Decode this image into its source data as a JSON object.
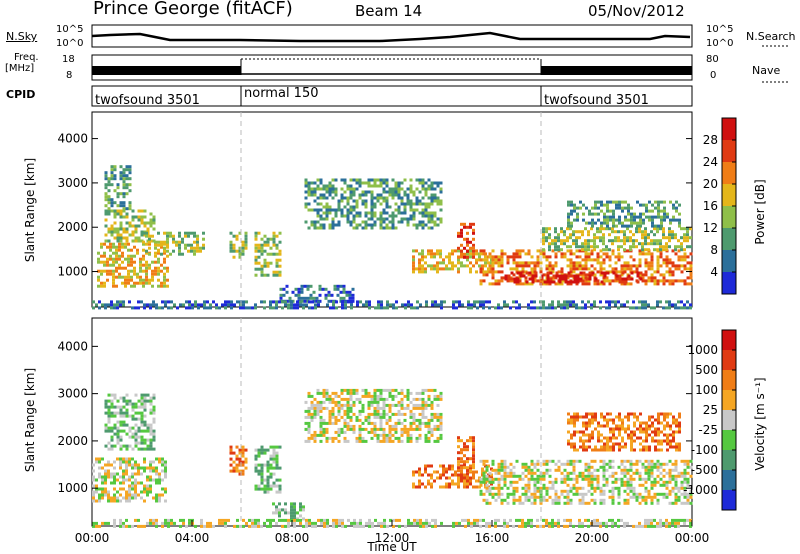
{
  "header": {
    "station": "Prince George (fitACF)",
    "beam": "Beam 14",
    "date": "05/Nov/2012"
  },
  "strips": {
    "nsky_label": "N.Sky",
    "nsky_top": "10^5",
    "nsky_bottom": "10^0",
    "nsearch_label": "N.Search",
    "nsearch_top": "10^5",
    "nsearch_bottom": "10^0",
    "freq_label_1": "Freq.",
    "freq_label_2": "[MHz]",
    "freq_top": "18",
    "freq_bottom": "8",
    "nave_label": "Nave",
    "nave_top": "80",
    "nave_bottom": "0",
    "cpid_label": "CPID",
    "cpid_segments": [
      {
        "label": "twofsound 3501",
        "start_hour": 0
      },
      {
        "label": "normal 150",
        "start_hour": 6
      },
      {
        "label": "twofsound 3501",
        "start_hour": 18
      }
    ]
  },
  "chart_data": [
    {
      "type": "heatmap",
      "panel": "power",
      "ylabel": "Slant Range [km]",
      "yticks": [
        "1000",
        "2000",
        "3000",
        "4000"
      ],
      "ylim": [
        200,
        4600
      ],
      "xlim": [
        0,
        24
      ],
      "colorbar": {
        "label": "Power [dB]",
        "ticks": [
          "4",
          "8",
          "12",
          "16",
          "20",
          "24",
          "28"
        ],
        "colors": [
          "#1e2ad8",
          "#2b6f9a",
          "#4e9a6e",
          "#8fbf49",
          "#e4b61a",
          "#f07d16",
          "#e03a12",
          "#d01010"
        ]
      },
      "regions": [
        {
          "t0": 0.2,
          "t1": 3.0,
          "r0": 700,
          "r1": 1650,
          "level": 4
        },
        {
          "t0": 0.5,
          "t1": 2.5,
          "r0": 1700,
          "r1": 2400,
          "level": 3
        },
        {
          "t0": 0.5,
          "t1": 1.5,
          "r0": 2400,
          "r1": 3400,
          "level": 2
        },
        {
          "t0": 2.0,
          "t1": 4.5,
          "r0": 1400,
          "r1": 1900,
          "level": 3
        },
        {
          "t0": 5.5,
          "t1": 6.2,
          "r0": 1300,
          "r1": 1900,
          "level": 3
        },
        {
          "t0": 6.5,
          "t1": 7.5,
          "r0": 900,
          "r1": 1900,
          "level": 3
        },
        {
          "t0": 7.5,
          "t1": 10.5,
          "r0": 350,
          "r1": 700,
          "level": 1
        },
        {
          "t0": 8.5,
          "t1": 14.0,
          "r0": 2000,
          "r1": 3100,
          "level": 2
        },
        {
          "t0": 12.8,
          "t1": 16.0,
          "r0": 1000,
          "r1": 1500,
          "level": 4
        },
        {
          "t0": 14.6,
          "t1": 15.3,
          "r0": 1300,
          "r1": 2100,
          "level": 6
        },
        {
          "t0": 15.5,
          "t1": 24.0,
          "r0": 700,
          "r1": 1500,
          "level": 5
        },
        {
          "t0": 16.5,
          "t1": 22.0,
          "r0": 750,
          "r1": 1000,
          "level": 7
        },
        {
          "t0": 18.0,
          "t1": 24.0,
          "r0": 1500,
          "r1": 2000,
          "level": 3
        },
        {
          "t0": 19.0,
          "t1": 23.5,
          "r0": 2000,
          "r1": 2600,
          "level": 2
        },
        {
          "t0": 0.0,
          "t1": 24.0,
          "r0": 200,
          "r1": 350,
          "level": 1
        }
      ]
    },
    {
      "type": "heatmap",
      "panel": "velocity",
      "xlabel": "Time UT",
      "ylabel": "Slant Range [km]",
      "xticks": [
        "00:00",
        "04:00",
        "08:00",
        "12:00",
        "16:00",
        "20:00",
        "00:00"
      ],
      "yticks": [
        "1000",
        "2000",
        "3000",
        "4000"
      ],
      "ylim": [
        200,
        4600
      ],
      "xlim": [
        0,
        24
      ],
      "colorbar": {
        "label": "Velocity [m s⁻¹]",
        "ticks": [
          "1000",
          "500",
          "100",
          "25",
          "-25",
          "-100",
          "-500",
          "-1000"
        ],
        "colors": [
          "#1e2ad8",
          "#2b6f9a",
          "#4e9a6e",
          "#55c840",
          "#c8c8c8",
          "#f5a623",
          "#f07d16",
          "#e03a12",
          "#d01010"
        ]
      },
      "regions": [
        {
          "t0": 0.0,
          "t1": 3.0,
          "r0": 700,
          "r1": 1650,
          "level": 4
        },
        {
          "t0": 0.5,
          "t1": 2.5,
          "r0": 1800,
          "r1": 3000,
          "level": 3
        },
        {
          "t0": 5.5,
          "t1": 6.2,
          "r0": 1300,
          "r1": 1900,
          "level": 6
        },
        {
          "t0": 6.5,
          "t1": 7.5,
          "r0": 900,
          "r1": 1900,
          "level": 3
        },
        {
          "t0": 7.2,
          "t1": 8.5,
          "r0": 350,
          "r1": 700,
          "level": 3
        },
        {
          "t0": 8.5,
          "t1": 14.0,
          "r0": 2000,
          "r1": 3100,
          "level": 4
        },
        {
          "t0": 12.8,
          "t1": 16.0,
          "r0": 1000,
          "r1": 1500,
          "level": 6
        },
        {
          "t0": 14.6,
          "t1": 15.3,
          "r0": 1300,
          "r1": 2100,
          "level": 6
        },
        {
          "t0": 15.5,
          "t1": 24.0,
          "r0": 700,
          "r1": 1600,
          "level": 4
        },
        {
          "t0": 19.0,
          "t1": 23.5,
          "r0": 1800,
          "r1": 2600,
          "level": 6
        },
        {
          "t0": 0.0,
          "t1": 24.0,
          "r0": 200,
          "r1": 350,
          "level": 4
        }
      ]
    }
  ]
}
